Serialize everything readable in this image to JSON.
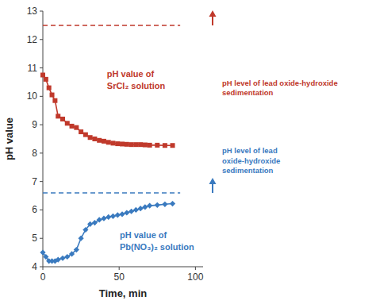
{
  "chart_data": {
    "type": "line",
    "xlabel": "Time, min",
    "ylabel": "pH value",
    "x": [
      0,
      2,
      4,
      6,
      8,
      10,
      13,
      16,
      19,
      22,
      25,
      28,
      31,
      34,
      37,
      40,
      43,
      46,
      49,
      52,
      55,
      58,
      61,
      64,
      67,
      70,
      75,
      80,
      85
    ],
    "series": [
      {
        "color": "#c0392b",
        "marker": "square",
        "values": [
          10.75,
          10.6,
          10.3,
          10.05,
          9.85,
          9.3,
          9.2,
          9.05,
          8.95,
          8.9,
          8.75,
          8.65,
          8.55,
          8.5,
          8.45,
          8.42,
          8.38,
          8.35,
          8.33,
          8.32,
          8.31,
          8.3,
          8.3,
          8.3,
          8.29,
          8.28,
          8.28,
          8.27,
          8.27
        ]
      },
      {
        "color": "#3a7abf",
        "marker": "diamond",
        "values": [
          4.5,
          4.35,
          4.2,
          4.2,
          4.2,
          4.25,
          4.3,
          4.35,
          4.45,
          4.6,
          5.0,
          5.3,
          5.5,
          5.55,
          5.65,
          5.7,
          5.75,
          5.78,
          5.82,
          5.85,
          5.9,
          5.95,
          6.0,
          6.05,
          6.1,
          6.15,
          6.17,
          6.2,
          6.22
        ]
      }
    ],
    "reference_lines": [
      {
        "value": 12.5,
        "x": [
          0,
          90
        ],
        "color": "#c0392b",
        "line_style": "dashed"
      },
      {
        "value": 6.6,
        "x": [
          0,
          90
        ],
        "color": "#3a7abf",
        "line_style": "dashed"
      }
    ],
    "annotations": [
      {
        "text": "pH value of\nSrCl₂ solution",
        "color": "#c0392b"
      },
      {
        "text": "pH value of\nPb(NO₃)₂ solution",
        "color": "#3a7abf"
      },
      {
        "text": "pH level of lead oxide-hydroxide\nsedimentation",
        "color": "#c0392b",
        "arrow_from": 12.5,
        "arrow_to": 13.0
      },
      {
        "text": "pH level of lead\noxide-hydroxide\nsedimentation",
        "color": "#3a7abf",
        "arrow_from": 6.6,
        "arrow_to": 7.1
      }
    ],
    "xlim": [
      0,
      105
    ],
    "ylim": [
      4,
      13
    ],
    "xticks": [
      0,
      50,
      100
    ],
    "yticks": [
      4,
      5,
      6,
      7,
      8,
      9,
      10,
      11,
      12,
      13
    ],
    "grid": false
  }
}
